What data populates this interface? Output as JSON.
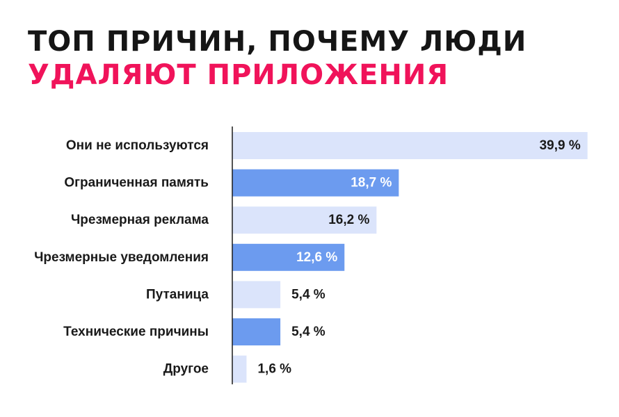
{
  "title": {
    "line1": "ТОП ПРИЧИН, ПОЧЕМУ ЛЮДИ",
    "line2": "УДАЛЯЮТ ПРИЛОЖЕНИЯ"
  },
  "colors": {
    "title_dark": "#151515",
    "title_accent": "#f0135a",
    "bar_light": "#dbe4fb",
    "bar_dark": "#6c9bef",
    "axis": "#1a1a1a",
    "label_on_light": "#1a1a1a",
    "label_on_dark": "#ffffff"
  },
  "chart_data": {
    "type": "bar",
    "orientation": "horizontal",
    "categories": [
      "Они не используются",
      "Ограниченная память",
      "Чрезмерная реклама",
      "Чрезмерные уведомления",
      "Путаница",
      "Технические причины",
      "Другое"
    ],
    "values": [
      39.9,
      18.7,
      16.2,
      12.6,
      5.4,
      5.4,
      1.6
    ],
    "value_labels": [
      "39,9 %",
      "18,7 %",
      "16,2 %",
      "12,6 %",
      "5,4 %",
      "5,4 %",
      "1,6 %"
    ],
    "bar_styles": [
      "light",
      "dark",
      "light",
      "dark",
      "light",
      "dark",
      "light"
    ],
    "unit": "%",
    "xlim": [
      0,
      40
    ],
    "grid": false,
    "legend": "none"
  }
}
